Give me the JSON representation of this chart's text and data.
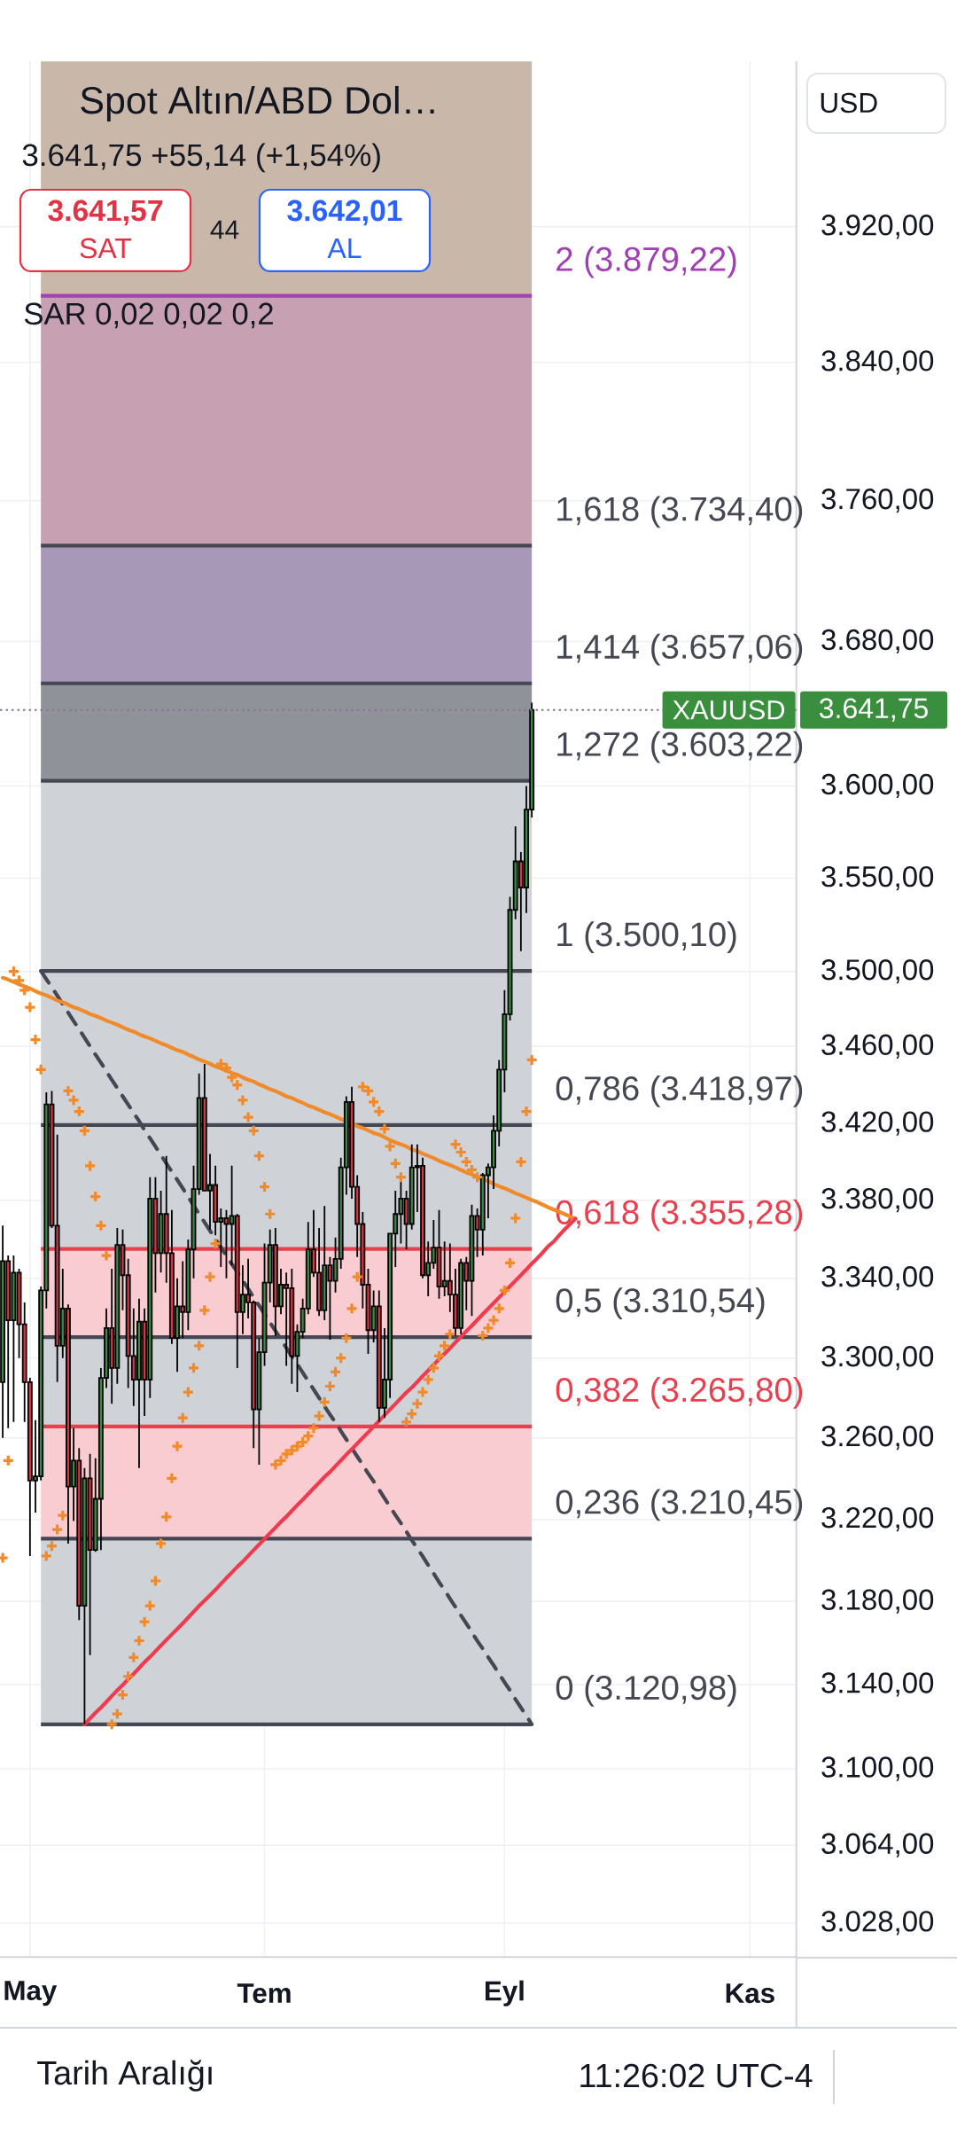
{
  "chart_data": {
    "type": "candlestick",
    "title": "Spot Altın/ABD Dol…",
    "subtitle": "3.641,75 +55,14 (+1,54%)",
    "categories": [
      null,
      null,
      null,
      null,
      null,
      "May",
      null,
      null,
      null,
      null,
      null,
      null,
      null,
      null,
      null,
      null,
      null,
      null,
      null,
      null,
      null,
      null,
      null,
      null,
      null,
      null,
      null,
      null,
      null,
      null,
      null,
      null,
      null,
      null,
      null,
      null,
      null,
      null,
      null,
      null,
      null,
      null,
      null,
      null,
      null,
      null,
      null,
      null,
      "Tem",
      null,
      null,
      null,
      null,
      null,
      null,
      null,
      null,
      null,
      null,
      null,
      null,
      null,
      null,
      null,
      null,
      null,
      null,
      null,
      null,
      null,
      null,
      null,
      null,
      null,
      null,
      null,
      null,
      null,
      null,
      null,
      null,
      null,
      null,
      null,
      null,
      null,
      null,
      null,
      null,
      null,
      null,
      null,
      "Eyl",
      null,
      null,
      null,
      null,
      null,
      null,
      null,
      null,
      null,
      null,
      null,
      null,
      null,
      null,
      null,
      null,
      null,
      null,
      null,
      null,
      null,
      null,
      null,
      null,
      null,
      null,
      null,
      null,
      null,
      null,
      null,
      null,
      null,
      null,
      null,
      null,
      null,
      null,
      null,
      null,
      null,
      null,
      null,
      null,
      "Kas",
      null,
      null,
      null,
      null,
      null,
      null,
      null,
      null
    ],
    "ohlc": [
      [
        3288,
        3367,
        3260,
        3349
      ],
      [
        3349,
        3352,
        3265,
        3319
      ],
      [
        3319,
        3352,
        3268,
        3343
      ],
      [
        3343,
        3345,
        3300,
        3317
      ],
      [
        3317,
        3328,
        3268,
        3288
      ],
      [
        3288,
        3290,
        3202,
        3239
      ],
      [
        3239,
        3269,
        3223,
        3241
      ],
      [
        3241,
        3336,
        3239,
        3334
      ],
      [
        3334,
        3436,
        3325,
        3430
      ],
      [
        3430,
        3437,
        3366,
        3367
      ],
      [
        3367,
        3414,
        3288,
        3306
      ],
      [
        3306,
        3345,
        3300,
        3325
      ],
      [
        3325,
        3327,
        3208,
        3236
      ],
      [
        3236,
        3265,
        3219,
        3249
      ],
      [
        3249,
        3255,
        3171,
        3178
      ],
      [
        3178,
        3245,
        3121,
        3240
      ],
      [
        3240,
        3252,
        3154,
        3205
      ],
      [
        3205,
        3250,
        3204,
        3230
      ],
      [
        3230,
        3295,
        3205,
        3290
      ],
      [
        3290,
        3325,
        3285,
        3315
      ],
      [
        3315,
        3345,
        3277,
        3295
      ],
      [
        3295,
        3366,
        3287,
        3357
      ],
      [
        3357,
        3365,
        3324,
        3342
      ],
      [
        3342,
        3350,
        3285,
        3301
      ],
      [
        3301,
        3325,
        3276,
        3289
      ],
      [
        3289,
        3330,
        3245,
        3318
      ],
      [
        3318,
        3325,
        3271,
        3289
      ],
      [
        3289,
        3392,
        3280,
        3381
      ],
      [
        3381,
        3392,
        3333,
        3353
      ],
      [
        3353,
        3385,
        3343,
        3373
      ],
      [
        3373,
        3403,
        3338,
        3353
      ],
      [
        3353,
        3375,
        3307,
        3310
      ],
      [
        3310,
        3340,
        3293,
        3326
      ],
      [
        3326,
        3349,
        3310,
        3323
      ],
      [
        3323,
        3360,
        3314,
        3355
      ],
      [
        3355,
        3398,
        3340,
        3386
      ],
      [
        3386,
        3446,
        3383,
        3433
      ],
      [
        3433,
        3451,
        3385,
        3385
      ],
      [
        3385,
        3404,
        3365,
        3388
      ],
      [
        3388,
        3398,
        3362,
        3369
      ],
      [
        3369,
        3376,
        3346,
        3371
      ],
      [
        3371,
        3375,
        3340,
        3368
      ],
      [
        3368,
        3398,
        3347,
        3372
      ],
      [
        3372,
        3373,
        3295,
        3323
      ],
      [
        3323,
        3347,
        3312,
        3332
      ],
      [
        3332,
        3350,
        3320,
        3328
      ],
      [
        3328,
        3329,
        3255,
        3274
      ],
      [
        3274,
        3310,
        3247,
        3303
      ],
      [
        3303,
        3358,
        3296,
        3338
      ],
      [
        3338,
        3365,
        3328,
        3357
      ],
      [
        3357,
        3366,
        3311,
        3326
      ],
      [
        3326,
        3345,
        3322,
        3337
      ],
      [
        3337,
        3343,
        3296,
        3335
      ],
      [
        3335,
        3345,
        3287,
        3301
      ],
      [
        3301,
        3317,
        3283,
        3313
      ],
      [
        3313,
        3330,
        3310,
        3325
      ],
      [
        3325,
        3369,
        3322,
        3355
      ],
      [
        3355,
        3375,
        3341,
        3343
      ],
      [
        3343,
        3366,
        3321,
        3324
      ],
      [
        3324,
        3377,
        3319,
        3347
      ],
      [
        3347,
        3351,
        3309,
        3339
      ],
      [
        3339,
        3361,
        3333,
        3350
      ],
      [
        3350,
        3402,
        3345,
        3397
      ],
      [
        3397,
        3434,
        3383,
        3431
      ],
      [
        3431,
        3439,
        3381,
        3387
      ],
      [
        3387,
        3393,
        3351,
        3368
      ],
      [
        3368,
        3374,
        3325,
        3337
      ],
      [
        3337,
        3345,
        3302,
        3314
      ],
      [
        3314,
        3334,
        3308,
        3326
      ],
      [
        3326,
        3334,
        3268,
        3275
      ],
      [
        3275,
        3315,
        3270,
        3289
      ],
      [
        3289,
        3363,
        3280,
        3363
      ],
      [
        3363,
        3385,
        3346,
        3373
      ],
      [
        3373,
        3390,
        3358,
        3381
      ],
      [
        3381,
        3385,
        3355,
        3368
      ],
      [
        3368,
        3409,
        3365,
        3397
      ],
      [
        3397,
        3409,
        3374,
        3398
      ],
      [
        3398,
        3402,
        3340,
        3342
      ],
      [
        3342,
        3359,
        3331,
        3348
      ],
      [
        3348,
        3370,
        3345,
        3356
      ],
      [
        3356,
        3375,
        3330,
        3336
      ],
      [
        3336,
        3359,
        3331,
        3339
      ],
      [
        3339,
        3358,
        3323,
        3332
      ],
      [
        3332,
        3345,
        3311,
        3315
      ],
      [
        3315,
        3350,
        3312,
        3348
      ],
      [
        3348,
        3351,
        3324,
        3339
      ],
      [
        3339,
        3378,
        3321,
        3372
      ],
      [
        3372,
        3376,
        3351,
        3365
      ],
      [
        3365,
        3394,
        3352,
        3393
      ],
      [
        3393,
        3399,
        3371,
        3397
      ],
      [
        3397,
        3424,
        3386,
        3416
      ],
      [
        3416,
        3453,
        3408,
        3448
      ],
      [
        3448,
        3490,
        3436,
        3477
      ],
      [
        3477,
        3540,
        3474,
        3533
      ],
      [
        3533,
        3578,
        3528,
        3559
      ],
      [
        3559,
        3564,
        3511,
        3545
      ],
      [
        3545,
        3600,
        3531,
        3587
      ],
      [
        3587,
        3646,
        3583,
        3641.75
      ],
      null,
      null,
      null,
      null,
      null,
      null,
      null,
      null,
      null,
      null,
      null,
      null,
      null,
      null,
      null,
      null,
      null,
      null,
      null,
      null,
      null,
      null,
      null,
      null,
      null,
      null,
      null,
      null,
      null,
      null,
      null,
      null,
      null,
      null,
      null,
      null,
      null,
      null,
      null,
      null,
      null,
      null,
      null,
      null,
      null,
      null,
      null,
      null
    ],
    "colors": [
      "#3d8b45",
      "#d13a45",
      "#3d8b45",
      "#d13a45",
      "#d13a45",
      "#d13a45",
      "#3d8b45",
      "#3d8b45",
      "#3d8b45",
      "#d13a45",
      "#d13a45",
      "#3d8b45",
      "#d13a45",
      "#3d8b45",
      "#d13a45",
      "#3d8b45",
      "#d13a45",
      "#3d8b45",
      "#3d8b45",
      "#3d8b45",
      "#d13a45",
      "#3d8b45",
      "#d13a45",
      "#d13a45",
      "#d13a45",
      "#3d8b45",
      "#d13a45",
      "#3d8b45",
      "#d13a45",
      "#3d8b45",
      "#d13a45",
      "#d13a45",
      "#3d8b45",
      "#d13a45",
      "#3d8b45",
      "#3d8b45",
      "#3d8b45",
      "#d13a45",
      "#3d8b45",
      "#d13a45",
      "#3d8b45",
      "#d13a45",
      "#3d8b45",
      "#d13a45",
      "#3d8b45",
      "#d13a45",
      "#d13a45",
      "#3d8b45",
      "#3d8b45",
      "#3d8b45",
      "#d13a45",
      "#3d8b45",
      "#d13a45",
      "#d13a45",
      "#3d8b45",
      "#3d8b45",
      "#3d8b45",
      "#d13a45",
      "#d13a45",
      "#3d8b45",
      "#d13a45",
      "#3d8b45",
      "#3d8b45",
      "#3d8b45",
      "#d13a45",
      "#d13a45",
      "#d13a45",
      "#d13a45",
      "#3d8b45",
      "#d13a45",
      "#3d8b45",
      "#3d8b45",
      "#3d8b45",
      "#3d8b45",
      "#d13a45",
      "#3d8b45",
      "#3d8b45",
      "#d13a45",
      "#3d8b45",
      "#3d8b45",
      "#d13a45",
      "#3d8b45",
      "#d13a45",
      "#d13a45",
      "#3d8b45",
      "#d13a45",
      "#3d8b45",
      "#d13a45",
      "#3d8b45",
      "#3d8b45",
      "#3d8b45",
      "#3d8b45",
      "#3d8b45",
      "#3d8b45",
      "#3d8b45",
      "#d13a45",
      "#3d8b45",
      "#3d8b45",
      null,
      null,
      null,
      null,
      null,
      null,
      null,
      null,
      null,
      null,
      null,
      null,
      null,
      null,
      null,
      null,
      null,
      null,
      null,
      null,
      null,
      null,
      null,
      null,
      null,
      null,
      null,
      null,
      null,
      null,
      null,
      null,
      null,
      null,
      null,
      null,
      null,
      null,
      null,
      null,
      null,
      null,
      null,
      null,
      null,
      null,
      null,
      null
    ],
    "series": [
      {
        "type": "line",
        "color": "#454852",
        "line_style": "dashed",
        "values": [
          null,
          null,
          null,
          null,
          null,
          null,
          null,
          3500.1,
          3495.7,
          3491.3,
          3486.9,
          3482.4,
          3478.0,
          3473.6,
          3469.2,
          3464.8,
          3460.4,
          3455.9,
          3451.5,
          3447.1,
          3442.7,
          3438.3,
          3433.9,
          3429.5,
          3425.2,
          3420.9,
          3416.5,
          3412.2,
          3407.9,
          3403.5,
          3399.2,
          3394.9,
          3390.5,
          3386.2,
          3381.9,
          3377.5,
          3373.2,
          3368.9,
          3364.6,
          3360.4,
          3356.1,
          3351.9,
          3347.6,
          3343.4,
          3339.1,
          3334.9,
          3330.6,
          3326.4,
          3322.1,
          3317.9,
          3313.6,
          3309.4,
          3305.1,
          3300.9,
          3296.8,
          3292.6,
          3288.4,
          3284.3,
          3280.1,
          3275.9,
          3271.8,
          3267.6,
          3263.4,
          3259.2,
          3255.1,
          3250.9,
          3246.7,
          3242.6,
          3238.5,
          3234.4,
          3230.3,
          3226.2,
          3222.1,
          3218.0,
          3213.9,
          3209.8,
          3205.7,
          3201.7,
          3197.6,
          3193.5,
          3189.4,
          3185.3,
          3181.2,
          3177.2,
          3173.2,
          3169.2,
          3165.1,
          3161.1,
          3157.1,
          3153.1,
          3149.1,
          3145.1,
          3141.1,
          3137.0,
          3133.0,
          3129.0,
          3125.0,
          3120.98,
          null,
          null,
          null,
          null,
          null,
          null,
          null,
          null,
          null,
          null,
          null,
          null,
          null,
          null,
          null,
          null,
          null,
          null,
          null,
          null,
          null,
          null,
          null,
          null,
          null,
          null,
          null,
          null,
          null,
          null,
          null,
          null,
          null,
          null,
          null,
          null,
          null,
          null,
          null,
          null,
          null,
          null,
          null,
          null,
          null,
          null,
          null,
          null
        ]
      },
      {
        "type": "line",
        "color": "#f08a2b",
        "values": [
          3496.7,
          3495.5,
          3494.3,
          3493.1,
          3491.9,
          3490.7,
          3489.5,
          3488.3,
          3487.1,
          3485.9,
          3484.7,
          3483.5,
          3482.3,
          3481.1,
          3479.9,
          3478.7,
          3477.5,
          3476.3,
          3475.1,
          3473.9,
          3472.7,
          3471.5,
          3470.3,
          3469.1,
          3467.9,
          3466.7,
          3465.5,
          3464.3,
          3463.1,
          3461.9,
          3460.7,
          3459.5,
          3458.3,
          3457.1,
          3455.9,
          3454.7,
          3453.5,
          3452.3,
          3451.1,
          3449.9,
          3448.7,
          3447.5,
          3446.3,
          3445.1,
          3443.9,
          3442.7,
          3441.5,
          3440.3,
          3439.1,
          3437.9,
          3436.7,
          3435.4,
          3434.2,
          3433.0,
          3431.8,
          3430.6,
          3429.4,
          3428.2,
          3427.0,
          3425.8,
          3424.6,
          3423.4,
          3422.2,
          3421.0,
          3419.8,
          3418.6,
          3417.4,
          3416.2,
          3415.0,
          3413.8,
          3412.6,
          3411.4,
          3410.2,
          3409.0,
          3407.8,
          3406.6,
          3405.4,
          3404.2,
          3403.0,
          3401.8,
          3400.6,
          3399.4,
          3398.2,
          3397.0,
          3395.8,
          3394.6,
          3393.4,
          3392.2,
          3391.0,
          3389.8,
          3388.6,
          3387.4,
          3386.2,
          3385.0,
          3383.8,
          3382.6,
          3381.4,
          3380.2,
          3379.0,
          3377.8,
          3376.6,
          3375.4,
          3374.2,
          3373.0,
          3371.8,
          3370.6,
          null,
          null,
          null,
          null,
          null,
          null,
          null,
          null,
          null,
          null,
          null,
          null,
          null,
          null,
          null,
          null,
          null,
          null,
          null,
          null,
          null,
          null,
          null,
          null,
          null,
          null,
          null,
          null,
          null,
          null,
          null,
          null,
          null,
          null,
          null,
          null,
          null,
          null,
          null,
          null
        ]
      },
      {
        "type": "line",
        "color": "#ef3b4d",
        "values": [
          null,
          null,
          null,
          null,
          null,
          null,
          null,
          null,
          null,
          null,
          null,
          null,
          null,
          null,
          null,
          3120.98,
          3123.7,
          3126.4,
          3129.0,
          3131.7,
          3134.4,
          3137.1,
          3139.8,
          3142.5,
          3145.1,
          3147.8,
          3150.5,
          3153.2,
          3155.9,
          3158.6,
          3161.3,
          3164.0,
          3166.7,
          3169.4,
          3172.1,
          3174.9,
          3177.6,
          3180.3,
          3183.0,
          3185.7,
          3188.5,
          3191.2,
          3193.9,
          3196.6,
          3199.3,
          3202.1,
          3204.8,
          3207.6,
          3210.3,
          3213.1,
          3215.8,
          3218.6,
          3221.3,
          3224.1,
          3226.9,
          3229.6,
          3232.4,
          3235.1,
          3237.9,
          3240.6,
          3243.4,
          3246.2,
          3249.0,
          3251.8,
          3254.6,
          3257.3,
          3260.1,
          3262.9,
          3265.7,
          3268.5,
          3271.3,
          3274.1,
          3276.9,
          3279.7,
          3282.5,
          3285.2,
          3288.1,
          3290.9,
          3293.7,
          3296.6,
          3299.4,
          3302.2,
          3305.0,
          3307.9,
          3310.7,
          3313.5,
          3316.3,
          3319.2,
          3322.0,
          3324.8,
          3327.6,
          3330.5,
          3333.4,
          3336.2,
          3339.1,
          3342.0,
          3344.8,
          3347.7,
          3350.6,
          3353.4,
          3356.3,
          3359.1,
          3362.0,
          3364.9,
          3367.7,
          3370.6,
          null,
          null,
          null,
          null,
          null,
          null,
          null,
          null,
          null,
          null,
          null,
          null,
          null,
          null,
          null,
          null,
          null,
          null,
          null,
          null,
          null,
          null,
          null,
          null,
          null,
          null,
          null,
          null,
          null,
          null,
          null,
          null,
          null,
          null,
          null,
          null,
          null,
          null,
          null,
          null
        ]
      },
      {
        "type": "scatter",
        "marker": "cross",
        "color": "#f08a2b",
        "values": [
          3201,
          3249,
          3500,
          3495,
          3490,
          3481,
          3464,
          3448,
          3202,
          3207,
          3215,
          3222,
          3437,
          3432,
          3426,
          3416,
          3398,
          3382,
          3367,
          3352,
          3121,
          3126,
          3135,
          3144,
          3153,
          3161,
          3170,
          3178,
          3190,
          3208,
          3221,
          3240,
          3256,
          3270,
          3283,
          3295,
          3306,
          3324,
          3341,
          3358,
          3451,
          3449,
          3444,
          3440,
          3432,
          3423,
          3416,
          3403,
          3387,
          3373,
          3247,
          3249,
          3252,
          3254,
          3256,
          3258,
          3261,
          3265,
          3271,
          3278,
          3286,
          3293,
          3300,
          3310,
          3325,
          3341,
          3439,
          3437,
          3431,
          3426,
          3417,
          3408,
          3399,
          3392,
          3268,
          3272,
          3277,
          3283,
          3289,
          3295,
          3301,
          3306,
          3312,
          3409,
          3405,
          3400,
          3396,
          3392,
          3311,
          3315,
          3319,
          3325,
          3334,
          3348,
          3371,
          3400,
          3426,
          3453,
          null,
          null,
          null,
          null,
          null,
          null,
          null,
          null,
          null,
          null,
          null,
          null,
          null,
          null,
          null,
          null,
          null,
          null,
          null,
          null,
          null,
          null,
          null,
          null,
          null,
          null,
          null,
          null,
          null,
          null,
          null,
          null,
          null,
          null,
          null,
          null,
          null,
          null,
          null,
          null,
          null,
          null,
          null,
          null,
          null,
          null,
          null,
          null
        ]
      }
    ],
    "ylim": [
      3012.4,
      4019.5
    ],
    "yticks": [
      {
        "value": 3028,
        "label": "3.028,00"
      },
      {
        "value": 3064,
        "label": "3.064,00"
      },
      {
        "value": 3100,
        "label": "3.100,00"
      },
      {
        "value": 3140,
        "label": "3.140,00"
      },
      {
        "value": 3180,
        "label": "3.180,00"
      },
      {
        "value": 3220,
        "label": "3.220,00"
      },
      {
        "value": 3260,
        "label": "3.260,00"
      },
      {
        "value": 3300,
        "label": "3.300,00"
      },
      {
        "value": 3340,
        "label": "3.340,00"
      },
      {
        "value": 3380,
        "label": "3.380,00"
      },
      {
        "value": 3420,
        "label": "3.420,00"
      },
      {
        "value": 3460,
        "label": "3.460,00"
      },
      {
        "value": 3500,
        "label": "3.500,00"
      },
      {
        "value": 3550,
        "label": "3.550,00"
      },
      {
        "value": 3600,
        "label": "3.600,00"
      },
      {
        "value": 3680,
        "label": "3.680,00"
      },
      {
        "value": 3760,
        "label": "3.760,00"
      },
      {
        "value": 3840,
        "label": "3.840,00"
      },
      {
        "value": 3920,
        "label": "3.920,00"
      }
    ],
    "log": true,
    "grid": true,
    "bands": [
      {
        "axis": "y",
        "from": 3120.98,
        "to": 3210.45,
        "color": "#cfd2d7"
      },
      {
        "axis": "y",
        "from": 3210.45,
        "to": 3265.8,
        "color": "#f9ccd1"
      },
      {
        "axis": "y",
        "from": 3265.8,
        "to": 3310.54,
        "color": "#cfd2d7"
      },
      {
        "axis": "y",
        "from": 3310.54,
        "to": 3355.28,
        "color": "#f9ccd1"
      },
      {
        "axis": "y",
        "from": 3355.28,
        "to": 3603.22,
        "color": "#cfd2d7"
      },
      {
        "axis": "y",
        "from": 3603.22,
        "to": 3657.06,
        "color": "#8f9299"
      },
      {
        "axis": "y",
        "from": 3657.06,
        "to": 3734.4,
        "color": "#a898b7"
      },
      {
        "axis": "y",
        "from": 3734.4,
        "to": 3879.22,
        "color": "#c7a1b2"
      },
      {
        "axis": "y",
        "from": 3879.22,
        "to": 4019.5,
        "color": "#c9b7a9"
      }
    ],
    "ref_lines": [
      {
        "axis": "y",
        "value": 3120.98,
        "label": "0 (3.120,98)",
        "color": "#454852"
      },
      {
        "axis": "y",
        "value": 3210.45,
        "label": "0,236 (3.210,45)",
        "color": "#454852"
      },
      {
        "axis": "y",
        "value": 3265.8,
        "label": "0,382 (3.265,80)",
        "color": "#e8404f"
      },
      {
        "axis": "y",
        "value": 3310.54,
        "label": "0,5 (3.310,54)",
        "color": "#454852"
      },
      {
        "axis": "y",
        "value": 3355.28,
        "label": "0,618 (3.355,28)",
        "color": "#e8404f"
      },
      {
        "axis": "y",
        "value": 3418.97,
        "label": "0,786 (3.418,97)",
        "color": "#454852"
      },
      {
        "axis": "y",
        "value": 3500.1,
        "label": "1 (3.500,10)",
        "color": "#454852"
      },
      {
        "axis": "y",
        "value": 3603.22,
        "label": "1,272 (3.603,22)",
        "color": "#454852"
      },
      {
        "axis": "y",
        "value": 3657.06,
        "label": "1,414 (3.657,06)",
        "color": "#454852"
      },
      {
        "axis": "y",
        "value": 3734.4,
        "label": "1,618 (3.734,40)",
        "color": "#454852"
      },
      {
        "axis": "y",
        "value": 3879.22,
        "label": "2 (3.879,22)",
        "color": "#a040b4"
      },
      {
        "axis": "y",
        "value": 3641.75,
        "label": "XAUUSD",
        "color": "#8f6f9c",
        "line_style": "dotted"
      }
    ],
    "annotations": [
      "3.641,57",
      "SAT",
      "44",
      "3.642,01",
      "AL",
      "SAR 0,02 0,02 0,2",
      "USD",
      "Tarih Aralığı",
      "11:26:02 UTC-4",
      "3.641,75"
    ]
  }
}
